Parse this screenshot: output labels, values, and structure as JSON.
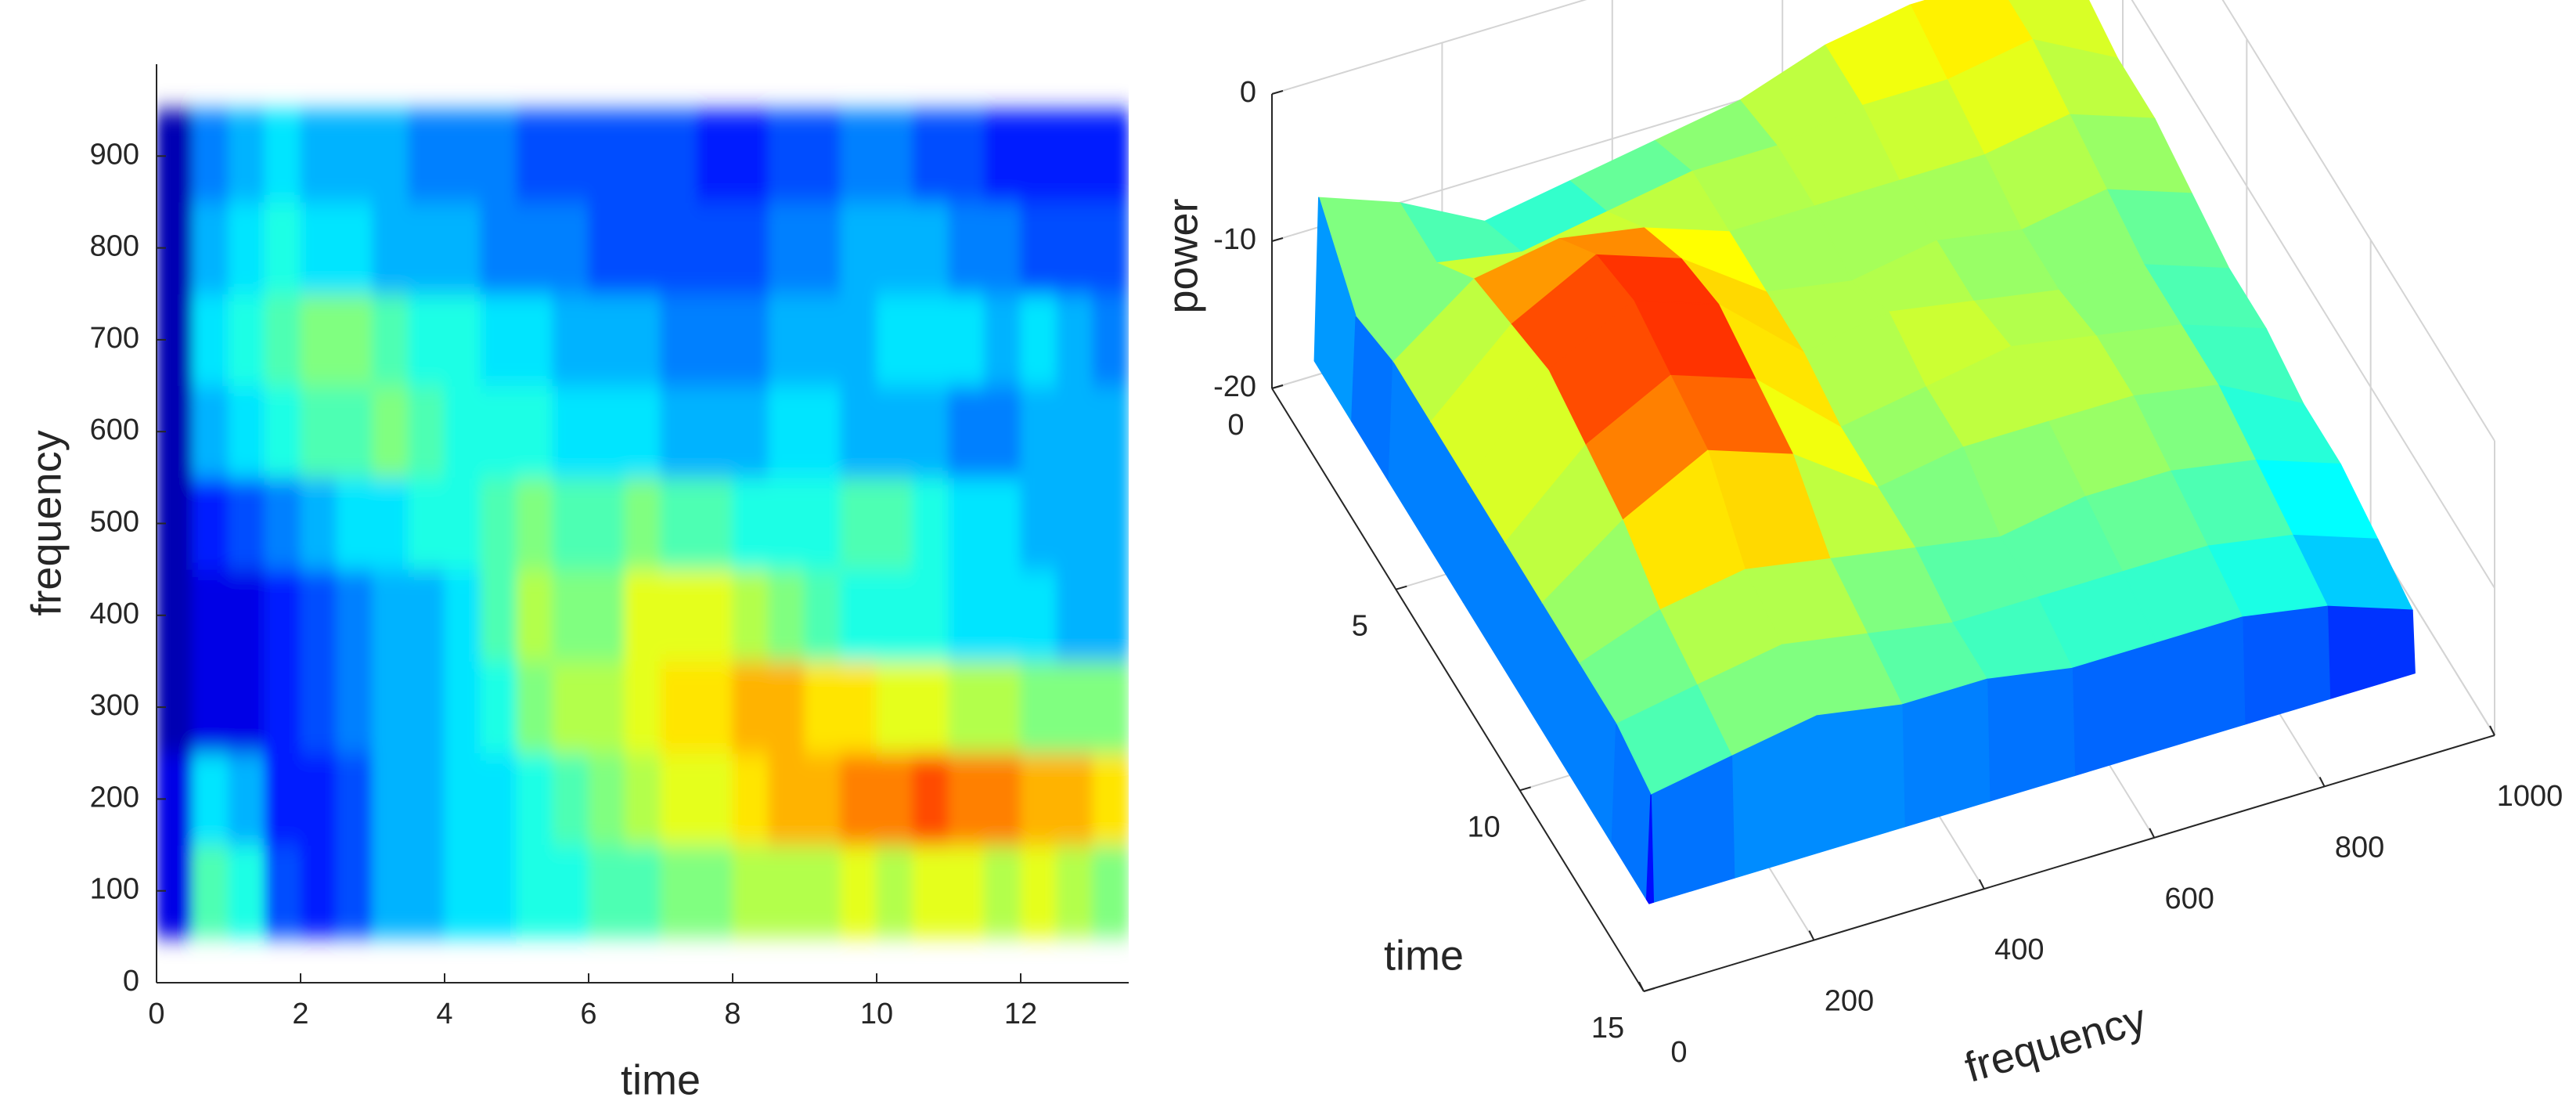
{
  "chart_data": [
    {
      "type": "heatmap",
      "xlabel": "time",
      "ylabel": "frequency",
      "xlim": [
        0,
        13.5
      ],
      "ylim": [
        0,
        1000
      ],
      "xticks": [
        0,
        2,
        4,
        6,
        8,
        10,
        12
      ],
      "yticks": [
        0,
        100,
        200,
        300,
        400,
        500,
        600,
        700,
        800,
        900
      ],
      "colormap": "jet",
      "zlim": [
        0,
        1
      ],
      "x_edges": [
        0,
        0.5,
        1,
        1.5,
        2,
        2.5,
        3,
        3.5,
        4,
        4.5,
        5,
        5.5,
        6,
        6.5,
        7,
        7.5,
        8,
        8.5,
        9,
        9.5,
        10,
        10.5,
        11,
        11.5,
        12,
        12.5,
        13,
        13.5
      ],
      "y_edges": [
        50,
        150,
        250,
        350,
        450,
        550,
        650,
        750,
        850,
        950
      ],
      "z": [
        [
          0.1,
          0.45,
          0.4,
          0.2,
          0.15,
          0.2,
          0.3,
          0.3,
          0.35,
          0.35,
          0.4,
          0.4,
          0.45,
          0.45,
          0.5,
          0.5,
          0.55,
          0.55,
          0.55,
          0.6,
          0.55,
          0.6,
          0.6,
          0.55,
          0.6,
          0.55,
          0.5
        ],
        [
          0.1,
          0.35,
          0.3,
          0.15,
          0.15,
          0.2,
          0.3,
          0.3,
          0.35,
          0.35,
          0.4,
          0.45,
          0.5,
          0.55,
          0.6,
          0.6,
          0.65,
          0.7,
          0.7,
          0.75,
          0.75,
          0.8,
          0.75,
          0.75,
          0.7,
          0.7,
          0.65
        ],
        [
          0.05,
          0.1,
          0.1,
          0.15,
          0.2,
          0.25,
          0.3,
          0.3,
          0.35,
          0.4,
          0.5,
          0.55,
          0.55,
          0.6,
          0.65,
          0.65,
          0.7,
          0.7,
          0.65,
          0.65,
          0.6,
          0.6,
          0.55,
          0.55,
          0.5,
          0.5,
          0.5
        ],
        [
          0.05,
          0.1,
          0.1,
          0.15,
          0.2,
          0.25,
          0.3,
          0.3,
          0.35,
          0.45,
          0.55,
          0.5,
          0.5,
          0.6,
          0.6,
          0.6,
          0.55,
          0.5,
          0.45,
          0.4,
          0.4,
          0.4,
          0.35,
          0.35,
          0.35,
          0.3,
          0.3
        ],
        [
          0.05,
          0.15,
          0.2,
          0.25,
          0.3,
          0.35,
          0.35,
          0.4,
          0.4,
          0.45,
          0.5,
          0.45,
          0.45,
          0.5,
          0.45,
          0.45,
          0.4,
          0.4,
          0.4,
          0.45,
          0.45,
          0.4,
          0.35,
          0.35,
          0.3,
          0.3,
          0.3
        ],
        [
          0.05,
          0.3,
          0.35,
          0.4,
          0.45,
          0.45,
          0.5,
          0.45,
          0.4,
          0.4,
          0.4,
          0.35,
          0.35,
          0.35,
          0.3,
          0.3,
          0.3,
          0.35,
          0.35,
          0.3,
          0.3,
          0.3,
          0.25,
          0.25,
          0.3,
          0.3,
          0.3
        ],
        [
          0.05,
          0.35,
          0.4,
          0.45,
          0.5,
          0.5,
          0.45,
          0.4,
          0.4,
          0.35,
          0.35,
          0.3,
          0.3,
          0.3,
          0.25,
          0.25,
          0.25,
          0.3,
          0.3,
          0.3,
          0.35,
          0.35,
          0.35,
          0.3,
          0.35,
          0.3,
          0.25
        ],
        [
          0.05,
          0.3,
          0.35,
          0.4,
          0.35,
          0.35,
          0.3,
          0.3,
          0.3,
          0.25,
          0.25,
          0.25,
          0.2,
          0.2,
          0.2,
          0.2,
          0.2,
          0.25,
          0.25,
          0.3,
          0.3,
          0.3,
          0.25,
          0.25,
          0.2,
          0.2,
          0.2
        ],
        [
          0.05,
          0.25,
          0.3,
          0.35,
          0.3,
          0.3,
          0.3,
          0.25,
          0.25,
          0.25,
          0.2,
          0.2,
          0.2,
          0.2,
          0.2,
          0.15,
          0.15,
          0.2,
          0.2,
          0.25,
          0.25,
          0.2,
          0.2,
          0.15,
          0.15,
          0.15,
          0.15
        ]
      ]
    },
    {
      "type": "surface",
      "xlabel": "frequency",
      "ylabel": "time",
      "zlabel": "power",
      "xlim": [
        0,
        1000
      ],
      "ylim": [
        0,
        15
      ],
      "zlim": [
        -20,
        0
      ],
      "xticks": [
        0,
        200,
        400,
        600,
        800,
        1000
      ],
      "yticks": [
        0,
        5,
        10,
        15
      ],
      "zticks": [
        -20,
        -10,
        0
      ],
      "colormap": "jet",
      "grid": true,
      "x": [
        50,
        55,
        150,
        250,
        350,
        450,
        550,
        650,
        750,
        850,
        950
      ],
      "y": [
        0,
        1.5,
        3,
        4.5,
        6,
        7.5,
        9,
        10.5,
        12,
        13.4,
        13.5
      ],
      "z": [
        [
          -19,
          -8,
          -10,
          -13,
          -12,
          -11,
          -10,
          -8,
          -7,
          -7,
          -9
        ],
        [
          -19,
          -12,
          -10,
          -11,
          -10,
          -9,
          -9,
          -8,
          -8,
          -7,
          -10
        ],
        [
          -19,
          -11,
          -7,
          -6,
          -7,
          -9,
          -9,
          -9,
          -9,
          -8,
          -10
        ],
        [
          -19,
          -11,
          -6,
          -3,
          -5,
          -9,
          -10,
          -9,
          -10,
          -9,
          -11
        ],
        [
          -19,
          -11,
          -5,
          -2,
          -4,
          -9,
          -8,
          -9,
          -10,
          -10,
          -12
        ],
        [
          -19,
          -11,
          -6,
          -3,
          -5,
          -10,
          -9,
          -8,
          -9,
          -10,
          -12
        ],
        [
          -19,
          -11,
          -7,
          -4,
          -6,
          -10,
          -9,
          -9,
          -9,
          -10,
          -13
        ],
        [
          -19,
          -11,
          -9,
          -8,
          -9,
          -10,
          -11,
          -10,
          -10,
          -11,
          -13
        ],
        [
          -19,
          -11,
          -10,
          -9,
          -10,
          -11,
          -11,
          -11,
          -11,
          -12,
          -14
        ],
        [
          -19,
          -12,
          -11,
          -10,
          -11,
          -11,
          -12,
          -12,
          -12,
          -13,
          -15
        ],
        [
          -19,
          -19,
          -19,
          -19,
          -19,
          -19,
          -19,
          -19,
          -19,
          -19,
          -19
        ]
      ]
    }
  ]
}
